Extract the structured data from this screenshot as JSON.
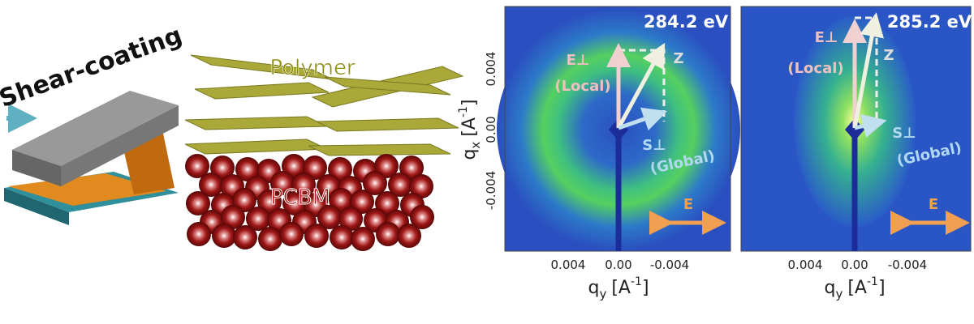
{
  "illustration": {
    "process": "Shear-coating",
    "top_layer": "Polymer",
    "bottom_layer": "PCBM"
  },
  "panels": [
    {
      "energy": "284.2 eV",
      "y_axis": {
        "symbol": "q",
        "subscript": "x",
        "unit": "[A",
        "exponent": "-1",
        "close": "]"
      },
      "y_ticks": [
        "0.004",
        "0.00",
        "-0.004"
      ],
      "x_axis": {
        "symbol": "q",
        "subscript": "y",
        "unit": "[A",
        "exponent": "-1",
        "close": "]"
      },
      "x_ticks": [
        "0.004",
        "0.00",
        "-0.004"
      ],
      "vectors": {
        "e_perp": "E⊥",
        "e_note": "(Local)",
        "z": "Z",
        "s_perp": "S⊥",
        "s_note": "(Global)",
        "field": "E"
      }
    },
    {
      "energy": "285.2 eV",
      "x_axis": {
        "symbol": "q",
        "subscript": "y",
        "unit": "[A",
        "exponent": "-1",
        "close": "]"
      },
      "x_ticks": [
        "0.004",
        "0.00",
        "-0.004"
      ],
      "vectors": {
        "e_perp": "E⊥",
        "e_note": "(Local)",
        "z": "Z",
        "s_perp": "S⊥",
        "s_note": "(Global)",
        "field": "E"
      }
    }
  ]
}
